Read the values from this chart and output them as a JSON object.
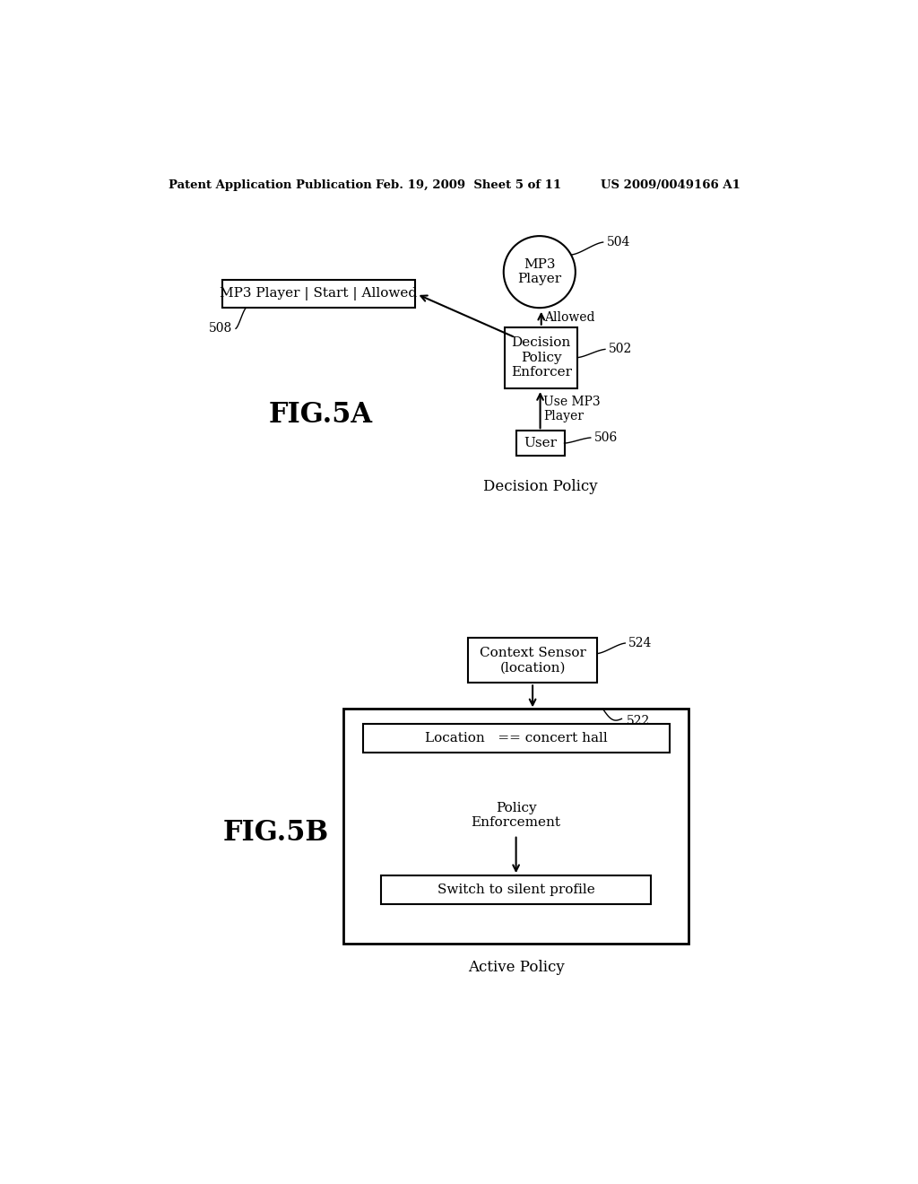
{
  "bg_color": "#ffffff",
  "header_left": "Patent Application Publication",
  "header_mid": "Feb. 19, 2009  Sheet 5 of 11",
  "header_right": "US 2009/0049166 A1",
  "fig5a_label": "FIG.5A",
  "fig5b_label": "FIG.5B",
  "decision_policy_label": "Decision Policy",
  "active_policy_label": "Active Policy",
  "mp3_player_circle_text": "MP3\nPlayer",
  "mp3_player_circle_ref": "504",
  "decision_enforcer_text": "Decision\nPolicy\nEnforcer",
  "decision_enforcer_ref": "502",
  "user_text": "User",
  "user_ref": "506",
  "mp3_allowed_box_text": "MP3 Player | Start | Allowed",
  "mp3_allowed_box_ref": "508",
  "allowed_label": "Allowed",
  "use_mp3_label": "Use MP3\nPlayer",
  "context_sensor_text": "Context Sensor\n(location)",
  "context_sensor_ref": "524",
  "active_policy_ref": "522",
  "location_text": "Location   == concert hall",
  "policy_enforcement_text": "Policy\nEnforcement",
  "switch_profile_text": "Switch to silent profile"
}
